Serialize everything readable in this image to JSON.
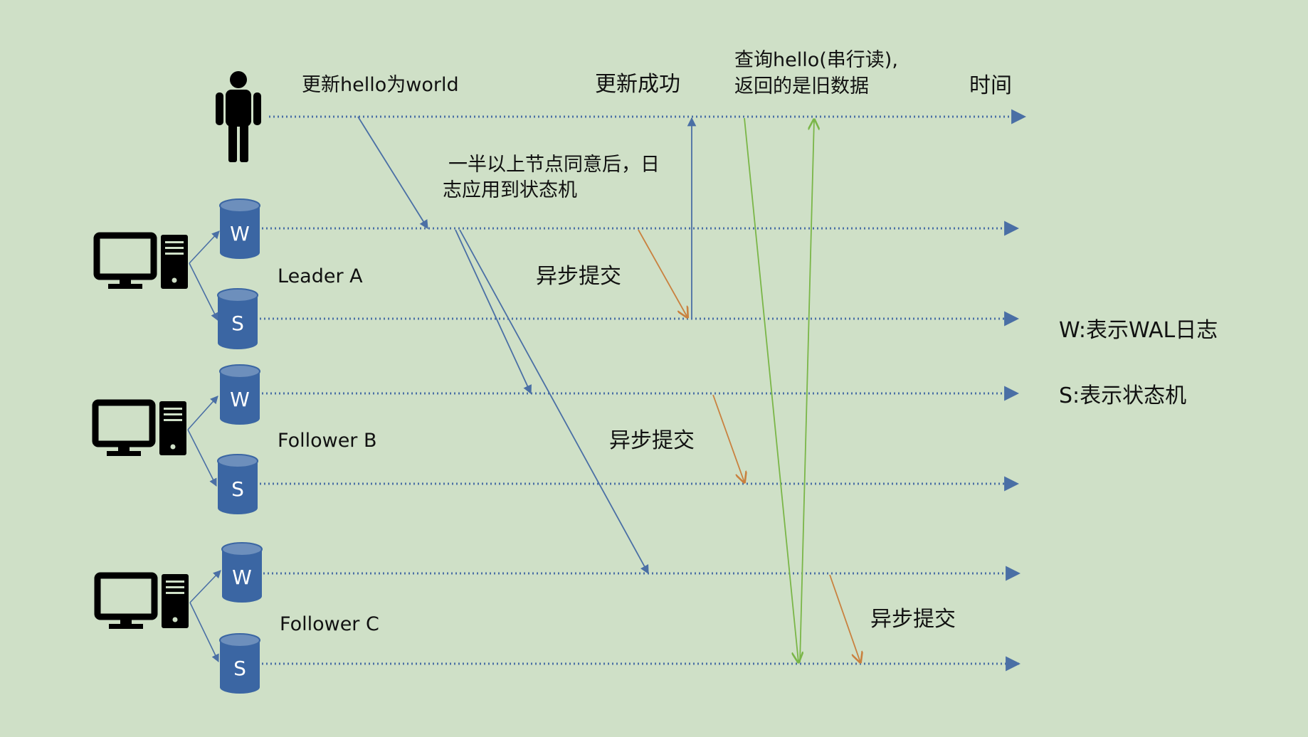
{
  "labels": {
    "update_request": "更新hello为world",
    "update_success": "更新成功",
    "query_line1": "查询hello(串行读),",
    "query_line2": "返回的是旧数据",
    "time": "时间",
    "majority_line1": "一半以上节点同意后，日",
    "majority_line2": "志应用到状态机",
    "async_commit_a": "异步提交",
    "async_commit_b": "异步提交",
    "async_commit_c": "异步提交"
  },
  "nodes": [
    {
      "name": "Leader A",
      "wal": "W",
      "state": "S"
    },
    {
      "name": "Follower B",
      "wal": "W",
      "state": "S"
    },
    {
      "name": "Follower C",
      "wal": "W",
      "state": "S"
    }
  ],
  "legend": {
    "wal": "W:表示WAL日志",
    "state": "S:表示状态机"
  },
  "colors": {
    "background": "#cfe0c7",
    "timeline": "#4a6fa5",
    "replication_arrow": "#4a6fa5",
    "commit_arrow": "#c9813f",
    "read_arrow": "#7ab648",
    "cylinder": "#3b66a3",
    "cylinder_top": "#6d8fbc",
    "icon": "#000000"
  }
}
